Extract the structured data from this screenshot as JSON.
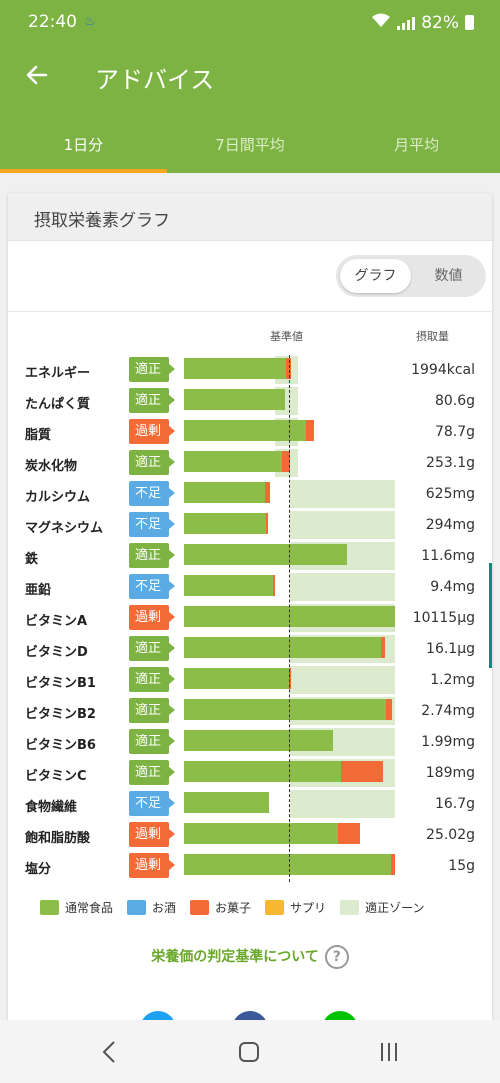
{
  "status_bar": {
    "time": "22:40",
    "battery": "82%"
  },
  "app_bar": {
    "title": "アドバイス"
  },
  "tabs": [
    {
      "label": "1日分"
    },
    {
      "label": "7日間平均"
    },
    {
      "label": "月平均"
    }
  ],
  "card": {
    "title": "摂取栄養素グラフ",
    "toggle": {
      "graph": "グラフ",
      "value": "数値"
    },
    "header_standard": "基準値",
    "header_intake": "摂取量"
  },
  "colors": {
    "normal_food": "#8bbd48",
    "alcohol": "#5aabe3",
    "snack": "#f26a35",
    "supplement": "#f7b731",
    "zone": "#dceacd"
  },
  "nutrients": [
    {
      "name": "エネルギー",
      "status": "適正",
      "level": "ok",
      "value": "1994kcal",
      "zone": [
        0.86,
        1.08
      ],
      "normal": 0.96,
      "snack": 0.05
    },
    {
      "name": "たんぱく質",
      "status": "適正",
      "level": "ok",
      "value": "80.6g",
      "zone": [
        0.86,
        1.08
      ],
      "normal": 0.95,
      "snack": 0
    },
    {
      "name": "脂質",
      "status": "過剰",
      "level": "high",
      "value": "78.7g",
      "zone": [
        0.86,
        1.08
      ],
      "normal": 1.15,
      "snack": 0.08
    },
    {
      "name": "炭水化物",
      "status": "適正",
      "level": "ok",
      "value": "253.1g",
      "zone": [
        0.86,
        1.08
      ],
      "normal": 0.92,
      "snack": 0.08
    },
    {
      "name": "カルシウム",
      "status": "不足",
      "level": "low",
      "value": "625mg",
      "zone": [
        1.0,
        1.99
      ],
      "normal": 0.76,
      "snack": 0.05
    },
    {
      "name": "マグネシウム",
      "status": "不足",
      "level": "low",
      "value": "294mg",
      "zone": [
        1.0,
        1.99
      ],
      "normal": 0.77,
      "snack": 0.02
    },
    {
      "name": "鉄",
      "status": "適正",
      "level": "ok",
      "value": "11.6mg",
      "zone": [
        1.0,
        1.99
      ],
      "normal": 1.54,
      "snack": 0
    },
    {
      "name": "亜鉛",
      "status": "不足",
      "level": "low",
      "value": "9.4mg",
      "zone": [
        1.0,
        1.99
      ],
      "normal": 0.84,
      "snack": 0.01
    },
    {
      "name": "ビタミンA",
      "status": "過剰",
      "level": "high",
      "value": "10115µg",
      "zone": [
        1.0,
        1.99
      ],
      "normal": 1.99,
      "snack": 0
    },
    {
      "name": "ビタミンD",
      "status": "適正",
      "level": "ok",
      "value": "16.1µg",
      "zone": [
        1.0,
        1.99
      ],
      "normal": 1.86,
      "snack": 0.04
    },
    {
      "name": "ビタミンB1",
      "status": "適正",
      "level": "ok",
      "value": "1.2mg",
      "zone": [
        1.0,
        1.99
      ],
      "normal": 0.99,
      "snack": 0.02
    },
    {
      "name": "ビタミンB2",
      "status": "適正",
      "level": "ok",
      "value": "2.74mg",
      "zone": [
        1.0,
        1.99
      ],
      "normal": 1.91,
      "snack": 0.05
    },
    {
      "name": "ビタミンB6",
      "status": "適正",
      "level": "ok",
      "value": "1.99mg",
      "zone": [
        1.0,
        1.99
      ],
      "normal": 1.41,
      "snack": 0
    },
    {
      "name": "ビタミンC",
      "status": "適正",
      "level": "ok",
      "value": "189mg",
      "zone": [
        1.0,
        1.99
      ],
      "normal": 1.48,
      "snack": 0.4
    },
    {
      "name": "食物繊維",
      "status": "不足",
      "level": "low",
      "value": "16.7g",
      "zone": [
        1.0,
        1.99
      ],
      "normal": 0.8,
      "snack": 0
    },
    {
      "name": "飽和脂肪酸",
      "status": "過剰",
      "level": "high",
      "value": "25.02g",
      "zone": [
        0.0,
        0.0
      ],
      "normal": 1.45,
      "snack": 0.21
    },
    {
      "name": "塩分",
      "status": "過剰",
      "level": "high",
      "value": "15g",
      "zone": [
        0.0,
        0.0
      ],
      "normal": 1.95,
      "snack": 0.04
    }
  ],
  "legend": [
    {
      "label": "通常食品",
      "color": "#8bbd48"
    },
    {
      "label": "お酒",
      "color": "#5aabe3"
    },
    {
      "label": "お菓子",
      "color": "#f26a35"
    },
    {
      "label": "サプリ",
      "color": "#f7b731"
    },
    {
      "label": "適正ゾーン",
      "color": "#dceacd"
    }
  ],
  "criteria_link": "栄養価の判定基準について",
  "criteria_help": "?"
}
